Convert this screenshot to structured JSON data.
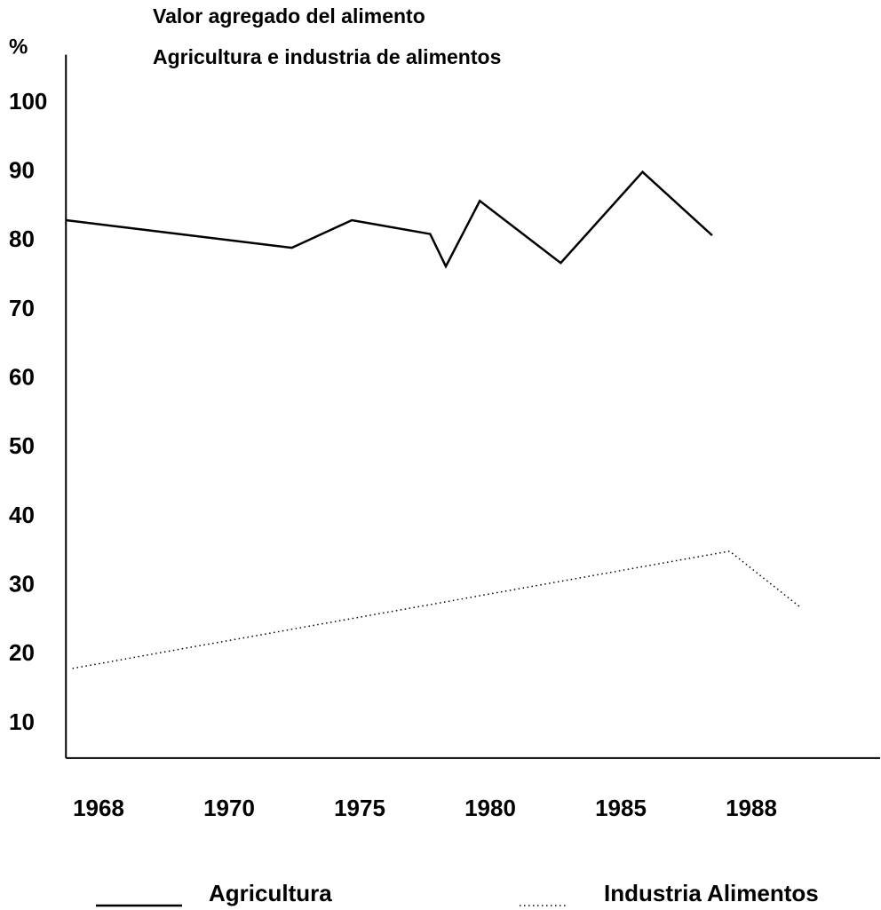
{
  "chart_data": {
    "type": "line",
    "title": "Valor agregado del alimento",
    "subtitle": "Agricultura e industria de alimentos",
    "y_label": "%",
    "xlim": [
      1967.5,
      1991
    ],
    "xticks": [
      1968,
      1970,
      1975,
      1980,
      1985,
      1988
    ],
    "ylim": [
      5,
      107
    ],
    "yticks": [
      10,
      20,
      30,
      40,
      50,
      60,
      70,
      80,
      90,
      100
    ],
    "grid": false,
    "series": [
      {
        "name": "Agricultura",
        "color": "#000000",
        "style": "solid",
        "x": [
          1967.5,
          1972.4,
          1974.7,
          1977.7,
          1978.3,
          1979.6,
          1982.7,
          1985.5,
          1987.1
        ],
        "values": [
          83,
          79,
          83,
          81,
          76.3,
          85.8,
          76.8,
          90,
          80.8
        ]
      },
      {
        "name": "Industria Alimentos",
        "color": "#000000",
        "style": "dotted",
        "x": [
          1967.6,
          1987.5,
          1989.1
        ],
        "values": [
          18,
          35,
          27
        ]
      }
    ]
  }
}
